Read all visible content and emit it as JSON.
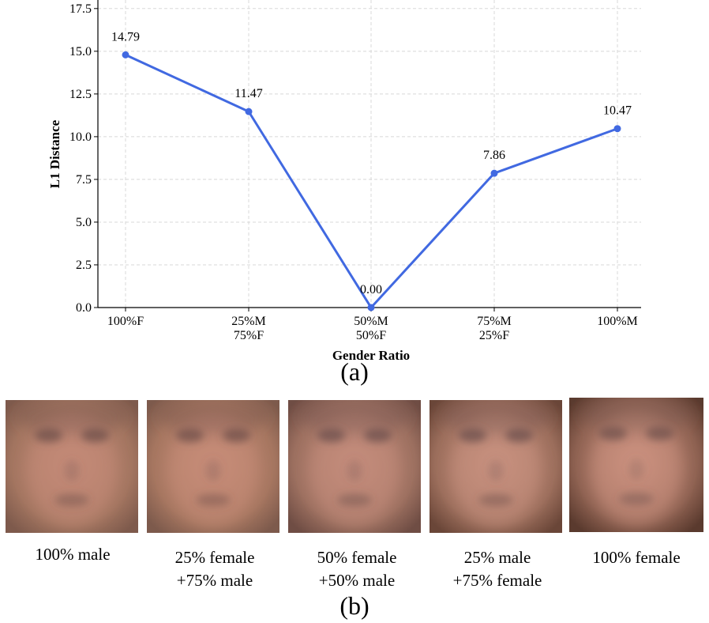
{
  "chart_data": {
    "type": "line",
    "title": "",
    "xlabel": "Gender Ratio",
    "ylabel": "L1 Distance",
    "categories": [
      "100%F",
      "25%M\n75%F",
      "50%M\n50%F",
      "75%M\n25%F",
      "100%M"
    ],
    "series": [
      {
        "name": "L1 Distance",
        "values": [
          14.79,
          11.47,
          0.0,
          7.86,
          10.47
        ],
        "color": "#4169e1"
      }
    ],
    "data_labels": [
      "14.79",
      "11.47",
      "0.00",
      "7.86",
      "10.47"
    ],
    "ylim": [
      0,
      18
    ],
    "yticks": [
      "0.0",
      "2.5",
      "5.0",
      "7.5",
      "10.0",
      "12.5",
      "15.0",
      "17.5"
    ],
    "grid": true
  },
  "captions": {
    "a": "(a)",
    "b": "(b)"
  },
  "faces": [
    {
      "label": "100% male",
      "colors": {
        "bg": "#a37560",
        "skin": "#c48a78",
        "dark": "#6f4f4a",
        "edge": "#7e5a4c"
      }
    },
    {
      "label": "25% female\n+75% male",
      "colors": {
        "bg": "#a67660",
        "skin": "#c78c79",
        "dark": "#70504b",
        "edge": "#7d5a4c"
      }
    },
    {
      "label": "50% female\n+50% male",
      "colors": {
        "bg": "#9d7060",
        "skin": "#c58d7c",
        "dark": "#6d4f4c",
        "edge": "#6f4d44"
      }
    },
    {
      "label": "25% male\n+75% female",
      "colors": {
        "bg": "#9c6e5c",
        "skin": "#c9917f",
        "dark": "#6e4f4c",
        "edge": "#6a4638"
      }
    },
    {
      "label": "100% female",
      "colors": {
        "bg": "#8f6252",
        "skin": "#cc9280",
        "dark": "#72524d",
        "edge": "#5a3a2e"
      }
    }
  ]
}
